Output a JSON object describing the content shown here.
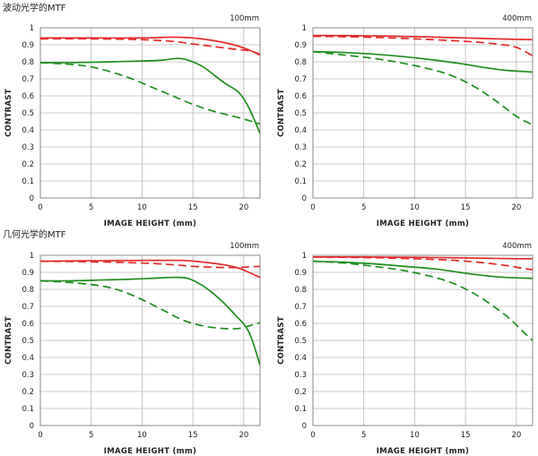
{
  "sections": [
    {
      "title": "波动光学的MTF"
    },
    {
      "title": "几何光学的MTF"
    }
  ],
  "colors": {
    "red": "#e32a2a",
    "green": "#1e8e1e",
    "grid": "#b8b8b8",
    "frame": "#888888"
  },
  "chart_data": [
    {
      "type": "line",
      "focal": "100mm",
      "section": 0,
      "xlabel": "IMAGE HEIGHT (mm)",
      "ylabel": "CONTRAST",
      "xlim": [
        0,
        21.6
      ],
      "ylim": [
        0,
        1
      ],
      "x_ticks": [
        0,
        5,
        10,
        15,
        20
      ],
      "y_ticks": [
        0,
        0.1,
        0.2,
        0.3,
        0.4,
        0.5,
        0.6,
        0.7,
        0.8,
        0.9,
        1
      ],
      "y_tick_labels": [
        "0",
        "0.1",
        "0.2",
        "0.3",
        "0.4",
        "0.5",
        "0.6",
        "0.7",
        "0.8",
        "0.9",
        "1"
      ],
      "grid": true,
      "series": [
        {
          "color": "red",
          "style": "solid",
          "points": [
            [
              0,
              0.94
            ],
            [
              5,
              0.94
            ],
            [
              10,
              0.94
            ],
            [
              13,
              0.945
            ],
            [
              15,
              0.94
            ],
            [
              17,
              0.925
            ],
            [
              19,
              0.9
            ],
            [
              20.5,
              0.87
            ],
            [
              21.6,
              0.84
            ]
          ]
        },
        {
          "color": "red",
          "style": "dashed",
          "points": [
            [
              0,
              0.935
            ],
            [
              5,
              0.935
            ],
            [
              10,
              0.93
            ],
            [
              13,
              0.92
            ],
            [
              15,
              0.905
            ],
            [
              17,
              0.89
            ],
            [
              19,
              0.875
            ],
            [
              20.5,
              0.865
            ],
            [
              21.6,
              0.845
            ]
          ]
        },
        {
          "color": "green",
          "style": "solid",
          "points": [
            [
              0,
              0.795
            ],
            [
              3,
              0.795
            ],
            [
              7,
              0.8
            ],
            [
              10,
              0.805
            ],
            [
              12,
              0.81
            ],
            [
              13.5,
              0.82
            ],
            [
              14.5,
              0.81
            ],
            [
              16,
              0.77
            ],
            [
              18,
              0.68
            ],
            [
              19.5,
              0.62
            ],
            [
              20.5,
              0.53
            ],
            [
              21.6,
              0.38
            ]
          ]
        },
        {
          "color": "green",
          "style": "dashed",
          "points": [
            [
              0,
              0.795
            ],
            [
              3,
              0.785
            ],
            [
              5,
              0.77
            ],
            [
              7,
              0.74
            ],
            [
              9,
              0.7
            ],
            [
              11,
              0.65
            ],
            [
              13,
              0.6
            ],
            [
              15,
              0.55
            ],
            [
              17,
              0.51
            ],
            [
              19,
              0.48
            ],
            [
              20.5,
              0.455
            ],
            [
              21.6,
              0.435
            ]
          ]
        }
      ]
    },
    {
      "type": "line",
      "focal": "400mm",
      "section": 0,
      "xlabel": "IMAGE HEIGHT (mm)",
      "ylabel": "CONTRAST",
      "xlim": [
        0,
        21.6
      ],
      "ylim": [
        0,
        1
      ],
      "x_ticks": [
        0,
        5,
        10,
        15,
        20
      ],
      "y_ticks": [
        0,
        0.1,
        0.2,
        0.3,
        0.4,
        0.5,
        0.6,
        0.7,
        0.8,
        0.9,
        1
      ],
      "y_tick_labels": [
        "0",
        "0.1",
        "0.2",
        "0.3",
        "0.4",
        "0.5",
        "0.6",
        "0.7",
        "0.8",
        "0.9",
        "1"
      ],
      "grid": true,
      "series": [
        {
          "color": "red",
          "style": "solid",
          "points": [
            [
              0,
              0.955
            ],
            [
              5,
              0.953
            ],
            [
              10,
              0.948
            ],
            [
              15,
              0.94
            ],
            [
              18,
              0.935
            ],
            [
              20,
              0.932
            ],
            [
              21.6,
              0.93
            ]
          ]
        },
        {
          "color": "red",
          "style": "dashed",
          "points": [
            [
              0,
              0.95
            ],
            [
              5,
              0.945
            ],
            [
              10,
              0.935
            ],
            [
              15,
              0.92
            ],
            [
              18,
              0.905
            ],
            [
              20,
              0.885
            ],
            [
              21.6,
              0.835
            ]
          ]
        },
        {
          "color": "green",
          "style": "solid",
          "points": [
            [
              0,
              0.86
            ],
            [
              3,
              0.855
            ],
            [
              6,
              0.845
            ],
            [
              9,
              0.83
            ],
            [
              12,
              0.81
            ],
            [
              15,
              0.785
            ],
            [
              17,
              0.765
            ],
            [
              19,
              0.75
            ],
            [
              21.6,
              0.74
            ]
          ]
        },
        {
          "color": "green",
          "style": "dashed",
          "points": [
            [
              0,
              0.86
            ],
            [
              3,
              0.84
            ],
            [
              6,
              0.82
            ],
            [
              9,
              0.79
            ],
            [
              12,
              0.75
            ],
            [
              14,
              0.71
            ],
            [
              16,
              0.65
            ],
            [
              18,
              0.57
            ],
            [
              20,
              0.48
            ],
            [
              21.6,
              0.43
            ]
          ]
        }
      ]
    },
    {
      "type": "line",
      "focal": "100mm",
      "section": 1,
      "xlabel": "IMAGE HEIGHT (mm)",
      "ylabel": "CONTRAST",
      "xlim": [
        0,
        21.6
      ],
      "ylim": [
        0,
        1
      ],
      "x_ticks": [
        0,
        5,
        10,
        15,
        20
      ],
      "y_ticks": [
        0,
        0.1,
        0.2,
        0.3,
        0.4,
        0.5,
        0.6,
        0.7,
        0.8,
        0.9,
        1
      ],
      "y_tick_labels": [
        "0",
        "0.1",
        "0.2",
        "0.3",
        "0.4",
        "0.5",
        "0.6",
        "0.7",
        "0.8",
        "0.9",
        "1"
      ],
      "grid": true,
      "series": [
        {
          "color": "red",
          "style": "solid",
          "points": [
            [
              0,
              0.965
            ],
            [
              5,
              0.968
            ],
            [
              10,
              0.97
            ],
            [
              14,
              0.97
            ],
            [
              16,
              0.96
            ],
            [
              18,
              0.945
            ],
            [
              19.5,
              0.925
            ],
            [
              20.5,
              0.9
            ],
            [
              21.6,
              0.87
            ]
          ]
        },
        {
          "color": "red",
          "style": "dashed",
          "points": [
            [
              0,
              0.965
            ],
            [
              5,
              0.962
            ],
            [
              10,
              0.955
            ],
            [
              13,
              0.945
            ],
            [
              15,
              0.935
            ],
            [
              17,
              0.93
            ],
            [
              19,
              0.928
            ],
            [
              20.5,
              0.932
            ],
            [
              21.6,
              0.935
            ]
          ]
        },
        {
          "color": "green",
          "style": "solid",
          "points": [
            [
              0,
              0.85
            ],
            [
              3,
              0.85
            ],
            [
              6,
              0.855
            ],
            [
              9,
              0.86
            ],
            [
              11,
              0.865
            ],
            [
              13,
              0.87
            ],
            [
              14.5,
              0.865
            ],
            [
              16,
              0.82
            ],
            [
              17.5,
              0.75
            ],
            [
              19,
              0.66
            ],
            [
              20.5,
              0.55
            ],
            [
              21.6,
              0.355
            ]
          ]
        },
        {
          "color": "green",
          "style": "dashed",
          "points": [
            [
              0,
              0.85
            ],
            [
              3,
              0.84
            ],
            [
              6,
              0.82
            ],
            [
              8,
              0.79
            ],
            [
              10,
              0.74
            ],
            [
              12,
              0.68
            ],
            [
              14,
              0.62
            ],
            [
              16,
              0.585
            ],
            [
              18,
              0.57
            ],
            [
              19.5,
              0.57
            ],
            [
              20.5,
              0.585
            ],
            [
              21.6,
              0.605
            ]
          ]
        }
      ]
    },
    {
      "type": "line",
      "focal": "400mm",
      "section": 1,
      "xlabel": "IMAGE HEIGHT (mm)",
      "ylabel": "CONTRAST",
      "xlim": [
        0,
        21.6
      ],
      "ylim": [
        0,
        1
      ],
      "x_ticks": [
        0,
        5,
        10,
        15,
        20
      ],
      "y_ticks": [
        0,
        0.1,
        0.2,
        0.3,
        0.4,
        0.5,
        0.6,
        0.7,
        0.8,
        0.9,
        1
      ],
      "y_tick_labels": [
        "0",
        "0.1",
        "0.2",
        "0.3",
        "0.4",
        "0.5",
        "0.6",
        "0.7",
        "0.8",
        "0.9",
        "1"
      ],
      "grid": true,
      "series": [
        {
          "color": "red",
          "style": "solid",
          "points": [
            [
              0,
              0.99
            ],
            [
              5,
              0.99
            ],
            [
              10,
              0.988
            ],
            [
              15,
              0.985
            ],
            [
              18,
              0.982
            ],
            [
              20,
              0.98
            ],
            [
              21.6,
              0.98
            ]
          ]
        },
        {
          "color": "red",
          "style": "dashed",
          "points": [
            [
              0,
              0.99
            ],
            [
              5,
              0.987
            ],
            [
              10,
              0.98
            ],
            [
              14,
              0.97
            ],
            [
              17,
              0.955
            ],
            [
              19,
              0.94
            ],
            [
              20.5,
              0.925
            ],
            [
              21.6,
              0.915
            ]
          ]
        },
        {
          "color": "green",
          "style": "solid",
          "points": [
            [
              0,
              0.965
            ],
            [
              3,
              0.96
            ],
            [
              6,
              0.95
            ],
            [
              9,
              0.935
            ],
            [
              12,
              0.92
            ],
            [
              15,
              0.895
            ],
            [
              17,
              0.88
            ],
            [
              19,
              0.87
            ],
            [
              21.6,
              0.865
            ]
          ]
        },
        {
          "color": "green",
          "style": "dashed",
          "points": [
            [
              0,
              0.965
            ],
            [
              3,
              0.955
            ],
            [
              6,
              0.935
            ],
            [
              9,
              0.91
            ],
            [
              12,
              0.87
            ],
            [
              14,
              0.83
            ],
            [
              16,
              0.77
            ],
            [
              18,
              0.69
            ],
            [
              19.5,
              0.62
            ],
            [
              20.5,
              0.56
            ],
            [
              21.6,
              0.5
            ]
          ]
        }
      ]
    }
  ]
}
